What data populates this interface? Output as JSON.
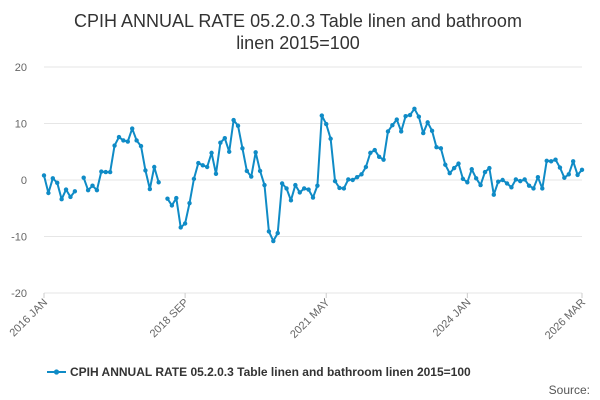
{
  "chart_data": {
    "type": "line",
    "title_line1": "CPIH ANNUAL RATE 05.2.0.3 Table linen and bathroom",
    "title_line2": "linen 2015=100",
    "xlabel": "",
    "ylabel": "",
    "ylim": [
      -20,
      20
    ],
    "y_ticks": [
      20,
      10,
      0,
      -10,
      -20
    ],
    "x_ticks": [
      "2016 JAN",
      "2018 SEP",
      "2021 MAY",
      "2024 JAN",
      "2026 MAR"
    ],
    "grid": true,
    "legend_position": "bottom",
    "series_color": "#0f8bc6",
    "source_label": "Source:",
    "series": [
      {
        "name": "CPIH ANNUAL RATE 05.2.0.3 Table linen and bathroom linen 2015=100",
        "x": [
          "2016 JAN",
          "2016 FEB",
          "2016 MAR",
          "2016 APR",
          "2016 MAY",
          "2016 JUN",
          "2016 JUL",
          "2016 AUG",
          "2016 SEP",
          "2016 OCT",
          "2016 NOV",
          "2016 DEC",
          "2017 JAN",
          "2017 FEB",
          "2017 MAR",
          "2017 APR",
          "2017 MAY",
          "2017 JUN",
          "2017 JUL",
          "2017 AUG",
          "2017 SEP",
          "2017 OCT",
          "2017 NOV",
          "2017 DEC",
          "2018 JAN",
          "2018 FEB",
          "2018 MAR",
          "2018 APR",
          "2018 MAY",
          "2018 JUN",
          "2018 JUL",
          "2018 AUG",
          "2018 SEP",
          "2018 OCT",
          "2018 NOV",
          "2018 DEC",
          "2019 JAN",
          "2019 FEB",
          "2019 MAR",
          "2019 APR",
          "2019 MAY",
          "2019 JUN",
          "2019 JUL",
          "2019 AUG",
          "2019 SEP",
          "2019 OCT",
          "2019 NOV",
          "2019 DEC",
          "2020 JAN",
          "2020 FEB",
          "2020 MAR",
          "2020 APR",
          "2020 MAY",
          "2020 JUN",
          "2020 JUL",
          "2020 AUG",
          "2020 SEP",
          "2020 OCT",
          "2020 NOV",
          "2020 DEC",
          "2021 JAN",
          "2021 FEB",
          "2021 MAR",
          "2021 APR",
          "2021 MAY",
          "2021 JUN",
          "2021 JUL",
          "2021 AUG",
          "2021 SEP",
          "2021 OCT",
          "2021 NOV",
          "2021 DEC",
          "2022 JAN",
          "2022 FEB",
          "2022 MAR",
          "2022 APR",
          "2022 MAY",
          "2022 JUN",
          "2022 JUL",
          "2022 AUG",
          "2022 SEP",
          "2022 OCT",
          "2022 NOV",
          "2022 DEC",
          "2023 JAN",
          "2023 FEB",
          "2023 MAR",
          "2023 APR",
          "2023 MAY",
          "2023 JUN",
          "2023 JUL",
          "2023 AUG",
          "2023 SEP",
          "2023 OCT",
          "2023 NOV",
          "2023 DEC",
          "2024 JAN",
          "2024 FEB",
          "2024 MAR",
          "2024 APR",
          "2024 MAY",
          "2024 JUN",
          "2024 JUL",
          "2024 AUG",
          "2024 SEP",
          "2024 OCT",
          "2024 NOV",
          "2024 DEC",
          "2025 JAN",
          "2025 FEB",
          "2025 MAR",
          "2025 APR",
          "2025 MAY",
          "2025 JUN",
          "2025 JUL",
          "2025 AUG",
          "2025 SEP",
          "2025 OCT",
          "2025 NOV",
          "2025 DEC",
          "2026 JAN",
          "2026 FEB",
          "2026 MAR"
        ],
        "values": [
          0.8,
          -2.3,
          0.3,
          -0.5,
          -3.4,
          -1.7,
          -3.0,
          -2.0,
          null,
          0.4,
          -1.8,
          -1.0,
          -1.8,
          1.5,
          1.4,
          1.4,
          6.1,
          7.6,
          7.0,
          6.8,
          9.1,
          7.0,
          6.0,
          1.7,
          -1.6,
          2.3,
          -0.4,
          null,
          -3.3,
          -4.5,
          -3.2,
          -8.4,
          -7.7,
          -4.1,
          0.2,
          3.0,
          2.6,
          2.3,
          4.8,
          1.1,
          6.6,
          7.4,
          5.0,
          10.6,
          9.6,
          5.6,
          1.6,
          0.6,
          4.9,
          1.6,
          -0.9,
          -9.1,
          -10.8,
          -9.4,
          -0.6,
          -1.5,
          -3.6,
          -0.9,
          -2.2,
          -1.5,
          -1.7,
          -3.1,
          -1.0,
          11.4,
          9.9,
          7.3,
          -0.2,
          -1.4,
          -1.5,
          0.1,
          0.0,
          0.5,
          1.0,
          2.3,
          4.8,
          5.3,
          4.1,
          3.6,
          8.6,
          9.7,
          10.7,
          8.6,
          11.3,
          11.5,
          12.6,
          11.2,
          8.3,
          10.2,
          8.7,
          5.8,
          5.6,
          2.7,
          1.2,
          2.1,
          2.9,
          0.2,
          -0.4,
          1.9,
          0.3,
          -0.9,
          1.4,
          2.1,
          -2.6,
          -0.3,
          0.0,
          -0.6,
          -1.3,
          0.1,
          -0.2,
          0.1,
          -1.0,
          -1.5,
          0.5,
          -1.5,
          3.4,
          3.3,
          3.6,
          2.2,
          0.4,
          1.0,
          3.3,
          0.9,
          1.8
        ]
      }
    ]
  }
}
